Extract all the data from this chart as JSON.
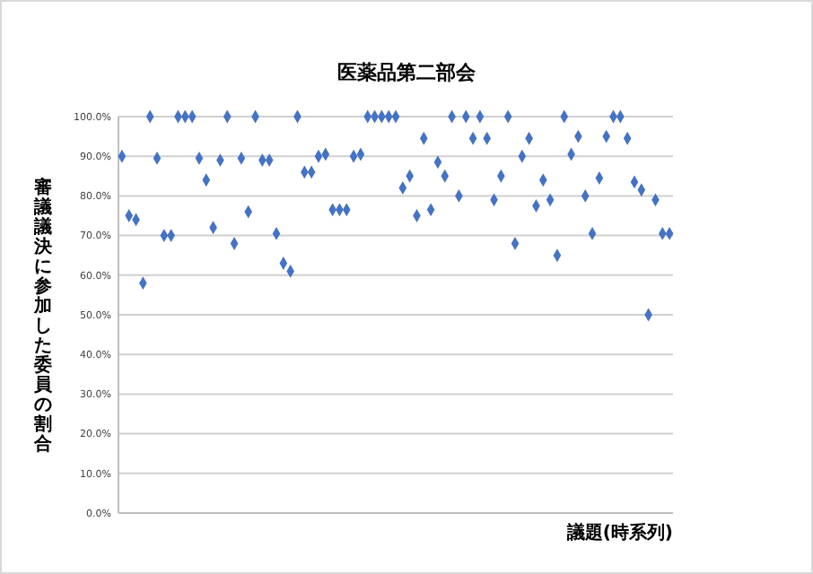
{
  "chart_data": {
    "type": "scatter",
    "title": "医薬品第二部会",
    "xlabel": "議題(時系列)",
    "ylabel": "審議議決に参加した委員の割合",
    "categories": [
      null,
      null,
      null,
      null,
      null,
      null,
      null,
      null,
      null,
      null,
      null,
      null,
      null,
      null,
      null,
      null,
      null,
      null,
      null,
      null,
      null,
      null,
      null,
      null,
      null,
      null,
      null,
      null,
      null,
      null,
      null,
      null,
      null,
      null,
      null,
      null,
      null,
      null,
      null,
      null,
      null,
      null,
      null,
      null,
      null,
      null,
      null,
      null,
      null,
      null,
      null,
      null,
      null,
      null,
      null,
      null,
      null,
      null,
      null,
      null,
      null,
      null,
      null,
      null,
      null,
      null,
      null,
      null,
      null,
      null,
      null,
      null,
      null,
      null,
      null,
      null,
      null,
      null,
      null
    ],
    "series": [
      {
        "color": "#4472c4",
        "values": [
          90,
          75,
          74,
          58,
          100,
          89.5,
          70,
          70,
          100,
          100,
          100,
          89.5,
          84,
          72,
          89,
          100,
          68,
          89.5,
          76,
          100,
          89,
          89,
          70.5,
          63,
          61,
          100,
          86,
          86,
          90,
          90.5,
          76.5,
          76.5,
          76.5,
          90,
          90.5,
          100,
          100,
          100,
          100,
          100,
          82,
          85,
          75,
          94.5,
          76.5,
          88.5,
          85,
          100,
          80,
          100,
          94.5,
          100,
          94.5,
          79,
          85,
          100,
          68,
          90,
          94.5,
          77.5,
          84,
          79,
          65,
          100,
          90.5,
          95,
          80,
          70.5,
          84.5,
          95,
          100,
          100,
          94.5,
          83.5,
          81.5,
          50,
          79,
          70.5,
          70.5
        ]
      }
    ],
    "ylim": [
      0,
      100
    ],
    "yticks": [
      {
        "value": 0,
        "label": "0.0%"
      },
      {
        "value": 10,
        "label": "10.0%"
      },
      {
        "value": 20,
        "label": "20.0%"
      },
      {
        "value": 30,
        "label": "30.0%"
      },
      {
        "value": 40,
        "label": "40.0%"
      },
      {
        "value": 50,
        "label": "50.0%"
      },
      {
        "value": 60,
        "label": "60.0%"
      },
      {
        "value": 70,
        "label": "70.0%"
      },
      {
        "value": 80,
        "label": "80.0%"
      },
      {
        "value": 90,
        "label": "90.0%"
      },
      {
        "value": 100,
        "label": "100.0%"
      }
    ],
    "grid": "y",
    "marker": "diamond",
    "tick_labels": "y"
  }
}
